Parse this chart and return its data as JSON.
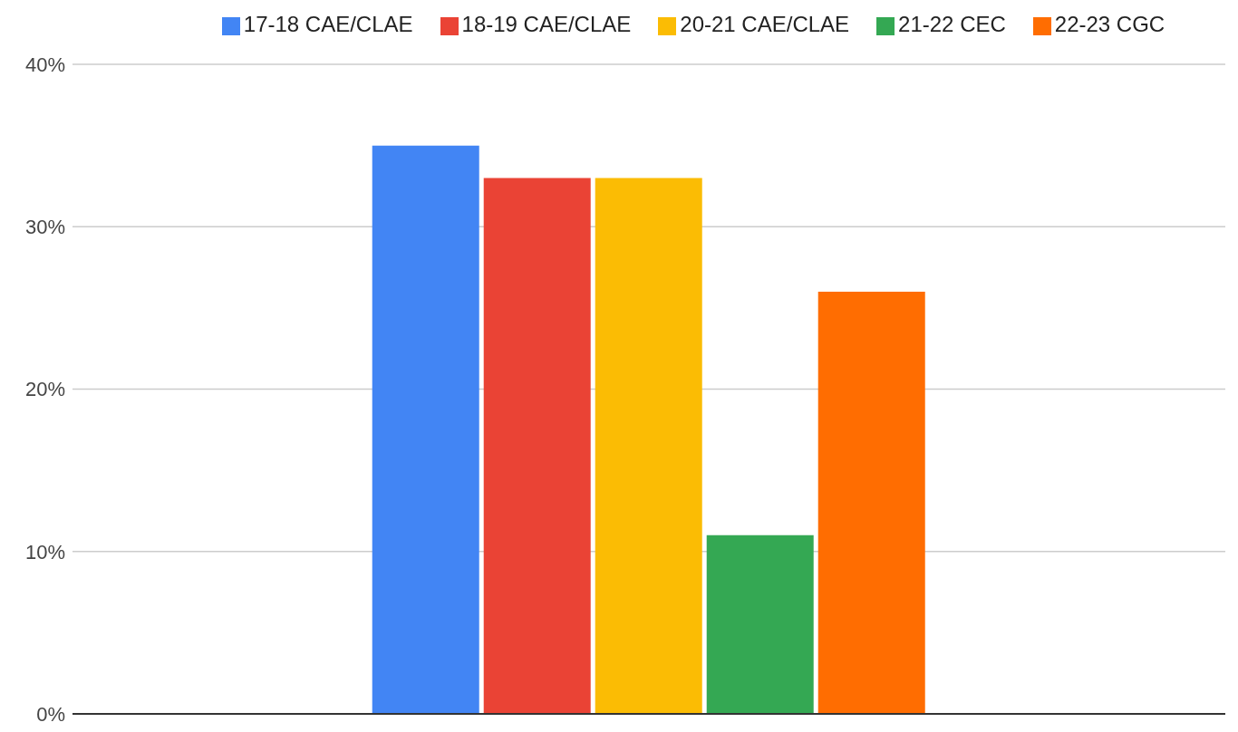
{
  "chart_data": {
    "type": "bar",
    "categories": [
      null
    ],
    "series": [
      {
        "name": "17-18 CAE/CLAE",
        "color": "#4285f4",
        "values": [
          35
        ]
      },
      {
        "name": "18-19 CAE/CLAE",
        "color": "#ea4335",
        "values": [
          33
        ]
      },
      {
        "name": "20-21 CAE/CLAE",
        "color": "#fbbc04",
        "values": [
          33
        ]
      },
      {
        "name": "21-22 CEC",
        "color": "#34a853",
        "values": [
          11
        ]
      },
      {
        "name": "22-23 CGC",
        "color": "#ff6d01",
        "values": [
          26
        ]
      }
    ],
    "ylim": [
      0,
      40
    ],
    "yticks": [
      {
        "value": 0,
        "label": "0%"
      },
      {
        "value": 10,
        "label": "10%"
      },
      {
        "value": 20,
        "label": "20%"
      },
      {
        "value": 30,
        "label": "30%"
      },
      {
        "value": 40,
        "label": "40%"
      }
    ],
    "grid": "y",
    "legend": "top"
  }
}
